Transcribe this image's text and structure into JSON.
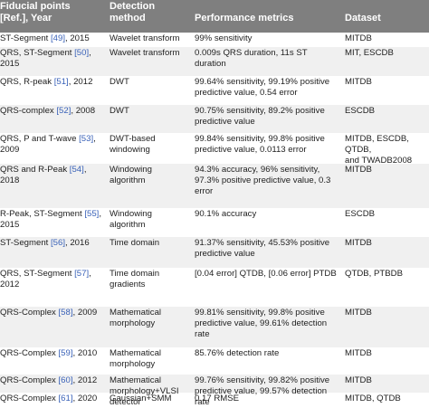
{
  "headers": {
    "fiducial": [
      "Fiducial points",
      "[Ref.], Year"
    ],
    "method": [
      "Detection",
      "method"
    ],
    "metrics": "Performance metrics",
    "dataset": "Dataset"
  },
  "rows": [
    {
      "fid_pre": "ST-Segment ",
      "ref": "[49]",
      "fid_post": ", 2015",
      "method": [
        "Wavelet transform"
      ],
      "metrics": [
        "99% sensitivity"
      ],
      "dataset": [
        "MITDB"
      ]
    },
    {
      "fid_pre": "QRS, ST-Segment ",
      "ref": "[50]",
      "fid_post": ", 2015",
      "method": [
        "Wavelet transform"
      ],
      "metrics": [
        "0.009s QRS duration, 11s ST",
        "duration"
      ],
      "dataset": [
        "MIT, ESCDB"
      ]
    },
    {
      "fid_pre": "QRS, R-peak ",
      "ref": "[51]",
      "fid_post": ", 2012",
      "method": [
        "DWT"
      ],
      "metrics": [
        "99.64% sensitivity, 99.19% positive",
        "predictive value, 0.54 error"
      ],
      "dataset": [
        "MITDB"
      ]
    },
    {
      "fid_pre": "QRS-complex ",
      "ref": "[52]",
      "fid_post": ", 2008",
      "method": [
        "DWT"
      ],
      "metrics": [
        "90.75% sensitivity, 89.2% positive",
        "predictive value"
      ],
      "dataset": [
        "ESCDB"
      ]
    },
    {
      "fid_pre": "QRS, P and T-wave ",
      "ref": "[53]",
      "fid_post": ", 2009",
      "method": [
        "DWT-based",
        "windowing"
      ],
      "metrics": [
        "99.84% sensitivity, 99.8% positive",
        "predictive value, 0.0113 error"
      ],
      "dataset": [
        "MITDB, ESCDB, QTDB,",
        "and TWADB2008"
      ]
    },
    {
      "fid_pre": "QRS and R-Peak ",
      "ref": "[54]",
      "fid_post": ", 2018",
      "method": [
        "Windowing",
        "algorithm"
      ],
      "metrics": [
        "94.3% accuracy, 96% sensitivity,",
        "97.3% positive predictive value, 0.3",
        "error"
      ],
      "dataset": [
        "MITDB"
      ]
    },
    {
      "fid_pre": "R-Peak, ST-Segment ",
      "ref": "[55]",
      "fid_post": ", 2015",
      "method": [
        "Windowing",
        "algorithm"
      ],
      "metrics": [
        "90.1% accuracy"
      ],
      "dataset": [
        "ESCDB"
      ]
    },
    {
      "fid_pre": "ST-Segment ",
      "ref": "[56]",
      "fid_post": ", 2016",
      "method": [
        "Time domain"
      ],
      "metrics": [
        "91.37% sensitivity, 45.53% positive",
        "predictive value"
      ],
      "dataset": [
        "MITDB"
      ]
    },
    {
      "fid_pre": "QRS, ST-Segment ",
      "ref": "[57]",
      "fid_post": ", 2012",
      "method": [
        "Time domain",
        "gradients"
      ],
      "metrics": [
        "[0.04 error] QTDB, [0.06 error] PTDB"
      ],
      "dataset": [
        "QTDB, PTBDB"
      ]
    },
    {
      "fid_pre": "QRS-Complex ",
      "ref": "[58]",
      "fid_post": ", 2009",
      "method": [
        "Mathematical",
        "morphology"
      ],
      "metrics": [
        "99.81% sensitivity, 99.8% positive",
        "predictive value, 99.61% detection",
        "rate"
      ],
      "dataset": [
        "MITDB"
      ]
    },
    {
      "fid_pre": "QRS-Complex ",
      "ref": "[59]",
      "fid_post": ", 2010",
      "method": [
        "Mathematical",
        "morphology"
      ],
      "metrics": [
        "85.76% detection rate"
      ],
      "dataset": [
        "MITDB"
      ]
    },
    {
      "fid_pre": "QRS-Complex ",
      "ref": "[60]",
      "fid_post": ", 2012",
      "method": [
        "Mathematical",
        "morphology+VLSI",
        "detector"
      ],
      "metrics": [
        "99.76% sensitivity, 99.82% positive",
        "predictive value, 99.57% detection",
        "rate"
      ],
      "dataset": [
        "MITDB"
      ]
    },
    {
      "fid_pre": "QRS-Complex ",
      "ref": "[61]",
      "fid_post": ", 2020",
      "method": [
        "Gaussian+SMM"
      ],
      "metrics": [
        "0.17 RMSE"
      ],
      "dataset": [
        "MITDB, QTDB"
      ]
    }
  ],
  "colors": {
    "header_bg": "#7f7f7f",
    "header_text": "#ffffff",
    "alt_row_bg": "#f0f0f0",
    "link": "#3a62b8"
  }
}
